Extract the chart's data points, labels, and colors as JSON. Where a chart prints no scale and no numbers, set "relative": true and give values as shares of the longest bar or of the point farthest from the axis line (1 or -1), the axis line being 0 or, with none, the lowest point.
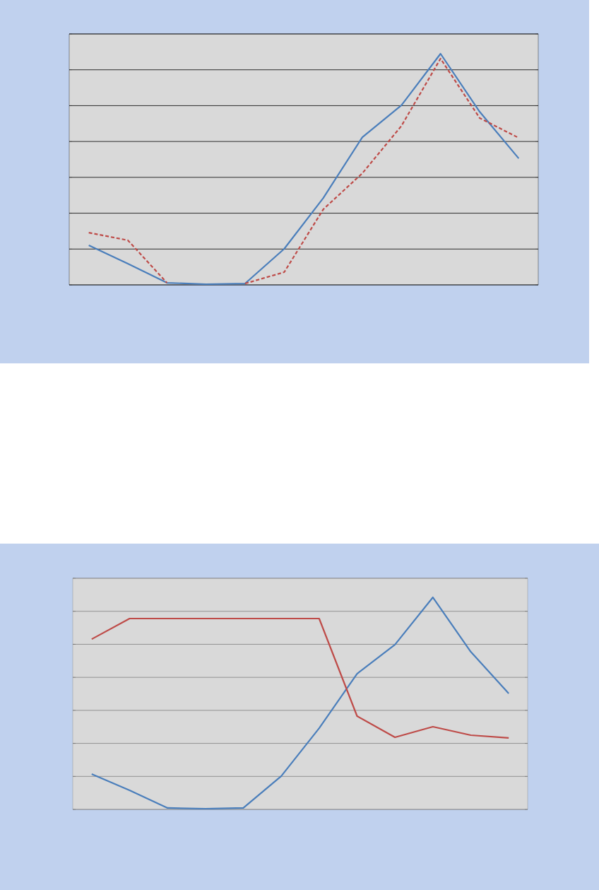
{
  "chart_data": [
    {
      "type": "line",
      "relative": true,
      "categories": [
        null,
        null,
        null,
        null,
        null,
        null,
        null,
        null,
        null,
        null,
        null,
        null
      ],
      "grid": "y",
      "marker": "none",
      "series": [
        {
          "color": "#4a7ebb",
          "line_style": "solid",
          "values": [
            0.171,
            0.092,
            0.009,
            0.003,
            0.006,
            0.156,
            0.376,
            0.639,
            0.777,
            1,
            0.749,
            0.547
          ]
        },
        {
          "color": "#be4b48",
          "line_style": "dashed",
          "values": [
            0.226,
            0.193,
            0.009,
            null,
            0.006,
            0.055,
            0.327,
            0.483,
            0.688,
            0.979,
            0.722,
            0.636
          ]
        }
      ]
    },
    {
      "type": "line",
      "relative": true,
      "categories": [
        null,
        null,
        null,
        null,
        null,
        null,
        null,
        null,
        null,
        null,
        null,
        null
      ],
      "grid": "y",
      "marker": "none",
      "series": [
        {
          "color": "#4a7ebb",
          "line_style": "solid",
          "values": [
            0.167,
            0.09,
            0.007,
            0.003,
            0.007,
            0.157,
            0.383,
            0.64,
            0.777,
            1,
            0.743,
            0.547
          ]
        },
        {
          "color": "#be4b48",
          "line_style": "solid",
          "values": [
            0.803,
            0.9,
            0.9,
            0.9,
            0.9,
            0.9,
            0.9,
            0.44,
            0.34,
            0.39,
            0.35,
            0.337
          ]
        }
      ]
    }
  ]
}
